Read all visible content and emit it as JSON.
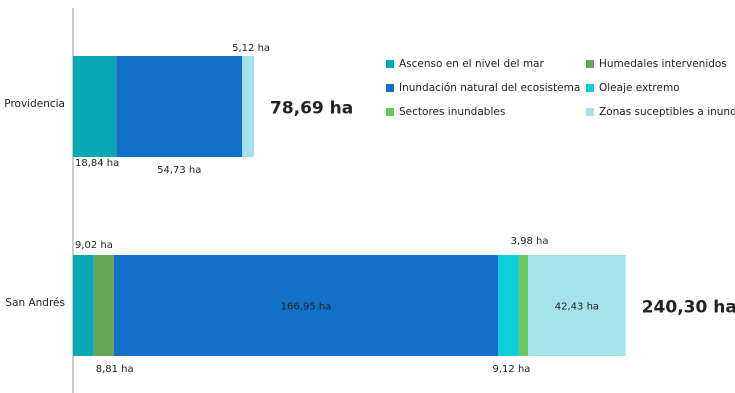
{
  "chart_data": {
    "type": "bar",
    "orientation": "horizontal",
    "stacked": true,
    "categories": [
      "Providencia",
      "San Andrés"
    ],
    "series": [
      {
        "name": "Ascenso en el nivel del mar",
        "color": "#0aa8b4",
        "values": [
          18.84,
          9.02
        ],
        "labels": [
          "18,84 ha",
          "9,02 ha"
        ]
      },
      {
        "name": "Humedales intervenidos",
        "color": "#65a654",
        "values": [
          0,
          8.81
        ],
        "labels": [
          "",
          "8,81 ha"
        ]
      },
      {
        "name": "Inundación natural del ecosistema",
        "color": "#1270c8",
        "values": [
          54.73,
          166.95
        ],
        "labels": [
          "54,73 ha",
          "166,95 ha"
        ]
      },
      {
        "name": "Oleaje extremo",
        "color": "#10cfdc",
        "values": [
          0,
          9.12
        ],
        "labels": [
          "",
          "9,12 ha"
        ]
      },
      {
        "name": "Sectores inundables",
        "color": "#6cc75c",
        "values": [
          0,
          3.98
        ],
        "labels": [
          "",
          "3,98 ha"
        ]
      },
      {
        "name": "Zonas suceptibles a inundación",
        "color": "#a3e2ea",
        "values": [
          5.12,
          42.43
        ],
        "labels": [
          "5,12 ha",
          "42,43 ha"
        ]
      }
    ],
    "totals": [
      "78,69 ha",
      "240,30 ha"
    ],
    "legend_position": "top-right",
    "grid": false
  }
}
